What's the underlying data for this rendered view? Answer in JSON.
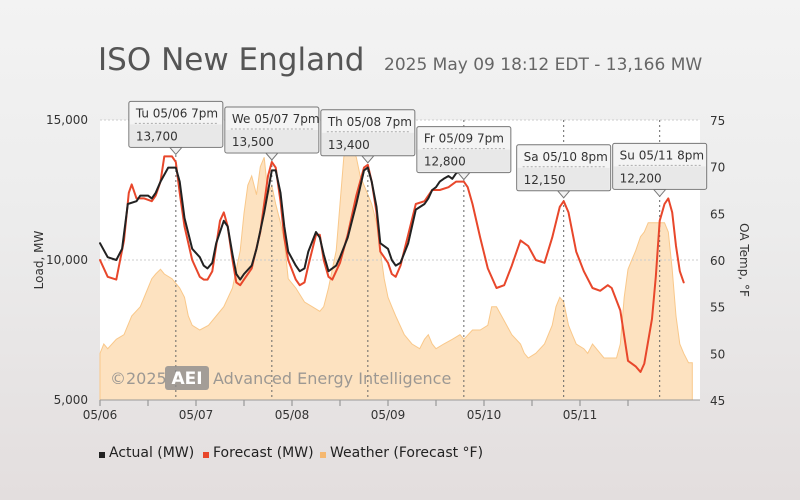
{
  "header": {
    "title": "ISO New England",
    "subtitle": "2025 May 09 18:12 EDT - 13,166 MW"
  },
  "watermark": {
    "copyright": "©2025",
    "logo": "AEI",
    "company": "Advanced Energy Intelligence"
  },
  "colors": {
    "actual": "#222222",
    "forecast": "#e8472b",
    "weather_fill": "#fde2c0",
    "weather_line": "#f9c88a",
    "tooltip_highlight": "#d0021b"
  },
  "chart_data": {
    "type": "line",
    "xlabel": "",
    "ylabel": "Load, MW",
    "y2label": "OA Temp, °F",
    "ylim": [
      5000,
      15000
    ],
    "y2lim": [
      45,
      75
    ],
    "xlim": [
      0,
      6.25
    ],
    "x_unit": "days since 05/06 00:00",
    "yticks": [
      "5,000",
      "10,000",
      "15,000"
    ],
    "y2ticks": [
      "45",
      "50",
      "55",
      "60",
      "65",
      "70",
      "75"
    ],
    "xticks": [
      "05/06",
      "05/07",
      "05/08",
      "05/09",
      "05/10",
      "05/11"
    ],
    "legend": [
      "Actual (MW)",
      "Forecast (MW)",
      "Weather (Forecast °F)"
    ],
    "legend_position": "bottom",
    "series": [
      {
        "name": "Actual (MW)",
        "points": [
          [
            0,
            10600
          ],
          [
            0.08,
            10100
          ],
          [
            0.17,
            10000
          ],
          [
            0.23,
            10400
          ],
          [
            0.29,
            12000
          ],
          [
            0.38,
            12100
          ],
          [
            0.42,
            12300
          ],
          [
            0.5,
            12300
          ],
          [
            0.54,
            12200
          ],
          [
            0.58,
            12400
          ],
          [
            0.63,
            12800
          ],
          [
            0.71,
            13300
          ],
          [
            0.79,
            13300
          ],
          [
            0.83,
            12800
          ],
          [
            0.88,
            11500
          ],
          [
            0.96,
            10400
          ],
          [
            1.04,
            10100
          ],
          [
            1.08,
            9800
          ],
          [
            1.12,
            9700
          ],
          [
            1.17,
            9900
          ],
          [
            1.21,
            10600
          ],
          [
            1.29,
            11400
          ],
          [
            1.33,
            11200
          ],
          [
            1.38,
            10200
          ],
          [
            1.42,
            9500
          ],
          [
            1.46,
            9300
          ],
          [
            1.5,
            9500
          ],
          [
            1.58,
            9800
          ],
          [
            1.63,
            10400
          ],
          [
            1.71,
            11700
          ],
          [
            1.79,
            13200
          ],
          [
            1.83,
            13200
          ],
          [
            1.88,
            12400
          ],
          [
            1.92,
            11200
          ],
          [
            1.96,
            10300
          ],
          [
            2.04,
            9800
          ],
          [
            2.08,
            9600
          ],
          [
            2.13,
            9700
          ],
          [
            2.17,
            10300
          ],
          [
            2.25,
            11000
          ],
          [
            2.29,
            10800
          ],
          [
            2.33,
            10200
          ],
          [
            2.38,
            9600
          ],
          [
            2.46,
            9800
          ],
          [
            2.5,
            10100
          ],
          [
            2.58,
            10800
          ],
          [
            2.67,
            12000
          ],
          [
            2.75,
            13200
          ],
          [
            2.79,
            13300
          ],
          [
            2.83,
            12800
          ],
          [
            2.88,
            11900
          ],
          [
            2.92,
            10600
          ],
          [
            3.0,
            10400
          ],
          [
            3.04,
            10000
          ],
          [
            3.08,
            9800
          ],
          [
            3.13,
            9900
          ],
          [
            3.21,
            10600
          ],
          [
            3.29,
            11800
          ],
          [
            3.38,
            12000
          ],
          [
            3.42,
            12200
          ],
          [
            3.46,
            12500
          ],
          [
            3.5,
            12600
          ],
          [
            3.54,
            12800
          ],
          [
            3.58,
            12900
          ],
          [
            3.63,
            13000
          ],
          [
            3.67,
            12900
          ],
          [
            3.71,
            13100
          ],
          [
            3.75,
            13166
          ]
        ]
      },
      {
        "name": "Forecast (MW)",
        "points": [
          [
            0,
            10000
          ],
          [
            0.08,
            9400
          ],
          [
            0.17,
            9300
          ],
          [
            0.25,
            10700
          ],
          [
            0.3,
            12400
          ],
          [
            0.33,
            12700
          ],
          [
            0.38,
            12200
          ],
          [
            0.46,
            12200
          ],
          [
            0.54,
            12100
          ],
          [
            0.58,
            12300
          ],
          [
            0.63,
            12800
          ],
          [
            0.67,
            13700
          ],
          [
            0.75,
            13700
          ],
          [
            0.79,
            13500
          ],
          [
            0.83,
            12400
          ],
          [
            0.88,
            11200
          ],
          [
            0.96,
            10000
          ],
          [
            1.04,
            9400
          ],
          [
            1.08,
            9300
          ],
          [
            1.12,
            9300
          ],
          [
            1.17,
            9600
          ],
          [
            1.25,
            11400
          ],
          [
            1.29,
            11700
          ],
          [
            1.33,
            11200
          ],
          [
            1.38,
            10000
          ],
          [
            1.42,
            9200
          ],
          [
            1.46,
            9100
          ],
          [
            1.5,
            9300
          ],
          [
            1.58,
            9700
          ],
          [
            1.67,
            11000
          ],
          [
            1.75,
            13000
          ],
          [
            1.79,
            13500
          ],
          [
            1.83,
            13300
          ],
          [
            1.88,
            12100
          ],
          [
            1.92,
            10800
          ],
          [
            1.96,
            10000
          ],
          [
            2.04,
            9300
          ],
          [
            2.08,
            9100
          ],
          [
            2.13,
            9200
          ],
          [
            2.17,
            9800
          ],
          [
            2.25,
            10900
          ],
          [
            2.29,
            10900
          ],
          [
            2.33,
            10000
          ],
          [
            2.38,
            9400
          ],
          [
            2.42,
            9300
          ],
          [
            2.5,
            9900
          ],
          [
            2.58,
            10900
          ],
          [
            2.67,
            12300
          ],
          [
            2.75,
            13300
          ],
          [
            2.79,
            13400
          ],
          [
            2.83,
            12800
          ],
          [
            2.88,
            11700
          ],
          [
            2.92,
            10300
          ],
          [
            3.0,
            9900
          ],
          [
            3.04,
            9500
          ],
          [
            3.08,
            9400
          ],
          [
            3.13,
            9800
          ],
          [
            3.21,
            10900
          ],
          [
            3.29,
            12000
          ],
          [
            3.38,
            12100
          ],
          [
            3.46,
            12500
          ],
          [
            3.54,
            12500
          ],
          [
            3.63,
            12600
          ],
          [
            3.71,
            12800
          ],
          [
            3.79,
            12800
          ],
          [
            3.83,
            12600
          ],
          [
            3.88,
            12000
          ],
          [
            3.96,
            10800
          ],
          [
            4.04,
            9700
          ],
          [
            4.13,
            9000
          ],
          [
            4.21,
            9100
          ],
          [
            4.29,
            9800
          ],
          [
            4.38,
            10700
          ],
          [
            4.46,
            10500
          ],
          [
            4.54,
            10000
          ],
          [
            4.63,
            9900
          ],
          [
            4.71,
            10800
          ],
          [
            4.79,
            11900
          ],
          [
            4.83,
            12100
          ],
          [
            4.88,
            11700
          ],
          [
            4.96,
            10300
          ],
          [
            5.04,
            9600
          ],
          [
            5.13,
            9000
          ],
          [
            5.21,
            8900
          ],
          [
            5.29,
            9100
          ],
          [
            5.33,
            9000
          ],
          [
            5.42,
            8200
          ],
          [
            5.5,
            6400
          ],
          [
            5.58,
            6200
          ],
          [
            5.63,
            6000
          ],
          [
            5.67,
            6300
          ],
          [
            5.75,
            7900
          ],
          [
            5.79,
            9400
          ],
          [
            5.83,
            11400
          ],
          [
            5.88,
            12000
          ],
          [
            5.92,
            12200
          ],
          [
            5.96,
            11700
          ],
          [
            6.0,
            10500
          ],
          [
            6.04,
            9600
          ],
          [
            6.08,
            9200
          ]
        ]
      },
      {
        "name": "Weather (Forecast °F)",
        "points": [
          [
            0,
            50
          ],
          [
            0.04,
            51
          ],
          [
            0.08,
            50.5
          ],
          [
            0.17,
            51.5
          ],
          [
            0.25,
            52
          ],
          [
            0.33,
            54
          ],
          [
            0.42,
            55
          ],
          [
            0.5,
            57
          ],
          [
            0.54,
            58
          ],
          [
            0.58,
            58.5
          ],
          [
            0.63,
            59
          ],
          [
            0.67,
            58.5
          ],
          [
            0.75,
            58
          ],
          [
            0.83,
            57
          ],
          [
            0.88,
            56
          ],
          [
            0.92,
            54
          ],
          [
            0.96,
            53
          ],
          [
            1.04,
            52.5
          ],
          [
            1.13,
            53
          ],
          [
            1.21,
            54
          ],
          [
            1.29,
            55
          ],
          [
            1.38,
            57
          ],
          [
            1.42,
            59
          ],
          [
            1.46,
            61
          ],
          [
            1.5,
            65
          ],
          [
            1.54,
            68
          ],
          [
            1.58,
            69
          ],
          [
            1.63,
            67
          ],
          [
            1.67,
            70
          ],
          [
            1.71,
            71
          ],
          [
            1.75,
            67
          ],
          [
            1.79,
            68
          ],
          [
            1.83,
            66
          ],
          [
            1.88,
            64
          ],
          [
            1.92,
            62
          ],
          [
            1.96,
            58
          ],
          [
            2.04,
            57
          ],
          [
            2.13,
            55.5
          ],
          [
            2.21,
            55
          ],
          [
            2.29,
            54.5
          ],
          [
            2.33,
            55
          ],
          [
            2.38,
            57
          ],
          [
            2.42,
            59
          ],
          [
            2.46,
            61
          ],
          [
            2.5,
            66
          ],
          [
            2.54,
            71
          ],
          [
            2.58,
            73
          ],
          [
            2.63,
            72
          ],
          [
            2.67,
            71
          ],
          [
            2.71,
            69
          ],
          [
            2.75,
            68
          ],
          [
            2.83,
            66
          ],
          [
            2.88,
            64
          ],
          [
            2.92,
            61
          ],
          [
            2.96,
            58
          ],
          [
            3.0,
            56
          ],
          [
            3.04,
            55
          ],
          [
            3.08,
            54
          ],
          [
            3.17,
            52
          ],
          [
            3.25,
            51
          ],
          [
            3.33,
            50.5
          ],
          [
            3.38,
            51.5
          ],
          [
            3.42,
            52
          ],
          [
            3.46,
            51
          ],
          [
            3.5,
            50.5
          ],
          [
            3.58,
            51
          ],
          [
            3.67,
            51.5
          ],
          [
            3.75,
            52
          ],
          [
            3.79,
            51.5
          ],
          [
            3.88,
            52.5
          ],
          [
            3.96,
            52.5
          ],
          [
            4.04,
            53
          ],
          [
            4.08,
            55
          ],
          [
            4.13,
            55
          ],
          [
            4.21,
            53.5
          ],
          [
            4.29,
            52
          ],
          [
            4.38,
            51
          ],
          [
            4.42,
            50
          ],
          [
            4.46,
            49.5
          ],
          [
            4.54,
            50
          ],
          [
            4.63,
            51
          ],
          [
            4.71,
            53
          ],
          [
            4.75,
            55
          ],
          [
            4.79,
            56
          ],
          [
            4.83,
            55.5
          ],
          [
            4.88,
            53
          ],
          [
            4.92,
            52
          ],
          [
            4.96,
            51
          ],
          [
            5.04,
            50.5
          ],
          [
            5.08,
            50
          ],
          [
            5.13,
            51
          ],
          [
            5.21,
            50
          ],
          [
            5.25,
            49.5
          ],
          [
            5.33,
            49.5
          ],
          [
            5.38,
            49.5
          ],
          [
            5.42,
            51
          ],
          [
            5.46,
            56
          ],
          [
            5.5,
            59
          ],
          [
            5.54,
            60
          ],
          [
            5.58,
            61
          ],
          [
            5.63,
            62.5
          ],
          [
            5.67,
            63
          ],
          [
            5.71,
            64
          ],
          [
            5.75,
            64
          ],
          [
            5.79,
            64
          ],
          [
            5.83,
            64
          ],
          [
            5.88,
            64
          ],
          [
            5.92,
            63
          ],
          [
            5.96,
            59
          ],
          [
            6.0,
            54
          ],
          [
            6.04,
            51
          ],
          [
            6.08,
            50
          ],
          [
            6.13,
            49
          ],
          [
            6.17,
            49
          ]
        ]
      }
    ],
    "peaks": [
      {
        "label": "Tu 05/06 7pm",
        "value": "13,700",
        "x": 0.79,
        "y": 13700,
        "highlight": false
      },
      {
        "label": "We 05/07 7pm",
        "value": "13,500",
        "x": 1.79,
        "y": 13500,
        "highlight": false
      },
      {
        "label": "Th 05/08 7pm",
        "value": "13,400",
        "x": 2.79,
        "y": 13400,
        "highlight": false
      },
      {
        "label": "Fr 05/09 7pm",
        "value": "12,800",
        "x": 3.79,
        "y": 12800,
        "highlight": true
      },
      {
        "label": "Sa 05/10 8pm",
        "value": "12,150",
        "x": 4.83,
        "y": 12150,
        "highlight": false
      },
      {
        "label": "Su 05/11 8pm",
        "value": "12,200",
        "x": 5.83,
        "y": 12200,
        "highlight": false
      }
    ]
  }
}
